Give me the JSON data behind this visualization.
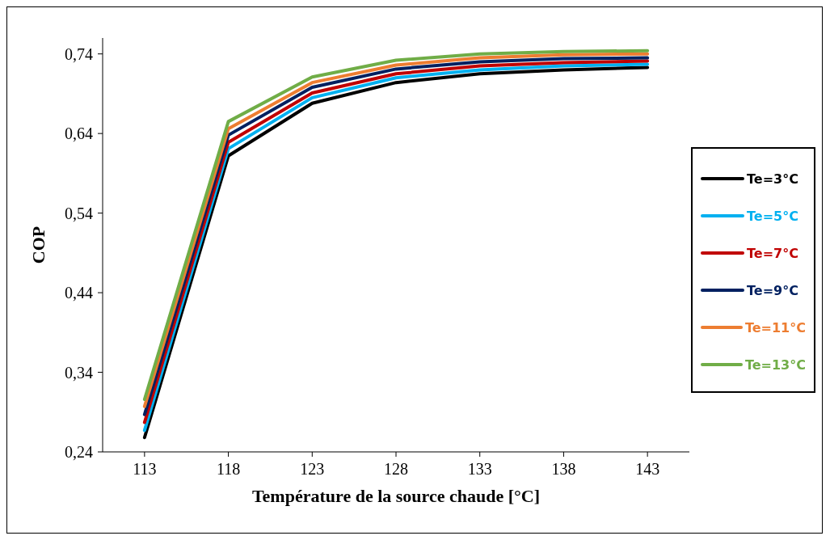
{
  "chart_data": {
    "type": "line",
    "xlabel": "Température de la source chaude [°C]",
    "ylabel": "COP",
    "x": [
      113,
      118,
      123,
      128,
      133,
      138,
      143
    ],
    "xlim": [
      110.5,
      145.5
    ],
    "xticks": [
      113,
      118,
      123,
      128,
      133,
      138,
      143
    ],
    "ylim": [
      0.24,
      0.76
    ],
    "yticks": [
      {
        "value": 0.24,
        "label": "0,24"
      },
      {
        "value": 0.34,
        "label": "0,34"
      },
      {
        "value": 0.44,
        "label": "0,44"
      },
      {
        "value": 0.54,
        "label": "0,54"
      },
      {
        "value": 0.64,
        "label": "0,64"
      },
      {
        "value": 0.74,
        "label": "0,74"
      }
    ],
    "grid": false,
    "legend": "right",
    "marker": "none",
    "line_style": "solid",
    "series": [
      {
        "name": "Te=3°C",
        "color": "#000000",
        "values": [
          0.258,
          0.612,
          0.678,
          0.704,
          0.715,
          0.72,
          0.723
        ]
      },
      {
        "name": "Te=5°C",
        "color": "#00b0f0",
        "values": [
          0.267,
          0.621,
          0.685,
          0.71,
          0.72,
          0.725,
          0.727
        ]
      },
      {
        "name": "Te=7°C",
        "color": "#c00000",
        "values": [
          0.277,
          0.629,
          0.691,
          0.715,
          0.725,
          0.729,
          0.731
        ]
      },
      {
        "name": "Te=9°C",
        "color": "#002060",
        "values": [
          0.287,
          0.638,
          0.698,
          0.721,
          0.73,
          0.734,
          0.735
        ]
      },
      {
        "name": "Te=11°C",
        "color": "#ed7d31",
        "values": [
          0.297,
          0.646,
          0.704,
          0.726,
          0.735,
          0.739,
          0.74
        ]
      },
      {
        "name": "Te=13°C",
        "color": "#70ad47",
        "values": [
          0.306,
          0.655,
          0.711,
          0.732,
          0.74,
          0.743,
          0.744
        ]
      }
    ]
  }
}
